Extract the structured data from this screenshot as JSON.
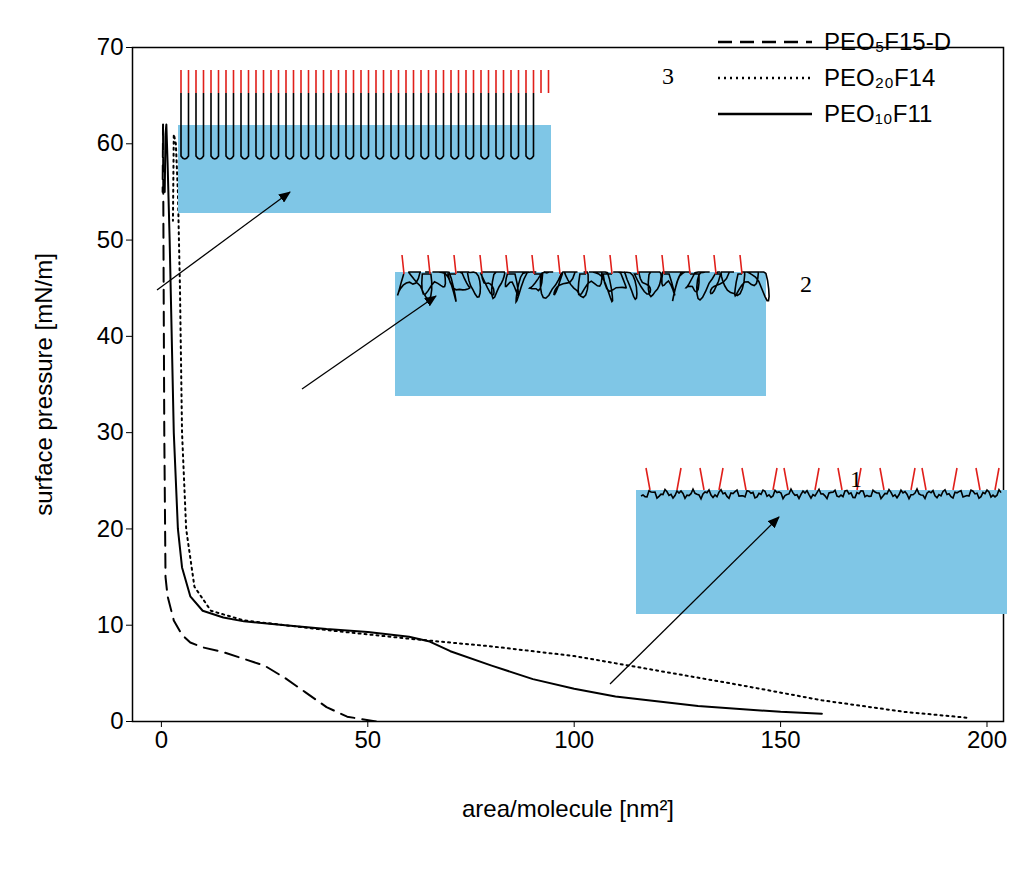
{
  "chart_data": {
    "type": "line",
    "x_label": "area/molecule [nm²]",
    "y_label": "surface pressure [mN/m]",
    "xlim": [
      -7,
      204
    ],
    "ylim": [
      0,
      70
    ],
    "xticks": [
      0,
      50,
      100,
      150,
      200
    ],
    "yticks": [
      0,
      10,
      20,
      30,
      40,
      50,
      60,
      70
    ],
    "grid": false,
    "legend": "top-right",
    "annotations": [
      "3",
      "2",
      "1"
    ],
    "series": [
      {
        "name": "PEO₅F15-D",
        "color": "#000000",
        "line_style": "dashed",
        "x": [
          52,
          45,
          40,
          35,
          30,
          25,
          20,
          15,
          10,
          7,
          5,
          3,
          1.5,
          1,
          0.7,
          0.5,
          0.4,
          0.3
        ],
        "values": [
          0,
          0.5,
          1.5,
          3,
          4.5,
          5.8,
          6.5,
          7.2,
          7.7,
          8.2,
          9,
          10.5,
          13,
          15,
          30,
          50,
          62,
          55
        ]
      },
      {
        "name": "PEO₂₀F14",
        "color": "#000000",
        "line_style": "dotted",
        "x": [
          195,
          180,
          160,
          140,
          120,
          100,
          80,
          60,
          40,
          30,
          20,
          12,
          8,
          6,
          5,
          4.5,
          4,
          3.5,
          3,
          2.8
        ],
        "values": [
          0.4,
          1,
          2.2,
          3.8,
          5.3,
          6.8,
          7.8,
          8.6,
          9.5,
          10,
          10.5,
          11.5,
          14,
          20,
          30,
          45,
          55,
          60,
          61,
          52
        ]
      },
      {
        "name": "PEO₁₀F11",
        "color": "#000000",
        "line_style": "solid",
        "x": [
          160,
          150,
          130,
          110,
          100,
          90,
          80,
          70,
          65,
          60,
          50,
          40,
          30,
          20,
          15,
          10,
          7,
          5,
          4,
          3,
          2.5,
          2,
          1.5,
          1.2,
          1,
          0.8
        ],
        "values": [
          0.8,
          1,
          1.6,
          2.6,
          3.4,
          4.4,
          5.8,
          7.3,
          8.3,
          8.8,
          9.3,
          9.6,
          10,
          10.4,
          10.8,
          11.5,
          13,
          16,
          20,
          30,
          40,
          50,
          58,
          62,
          61,
          55
        ]
      }
    ]
  }
}
